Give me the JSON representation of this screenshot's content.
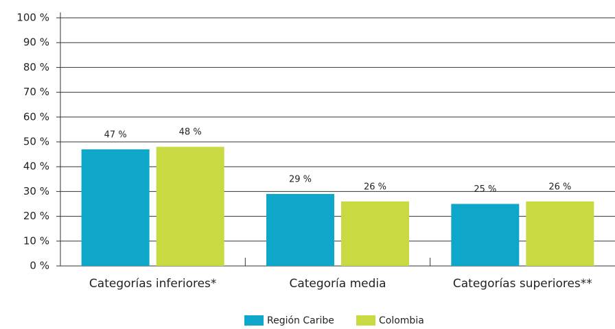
{
  "chart_data": {
    "type": "bar",
    "categories": [
      "Categorías inferiores*",
      "Categoría media",
      "Categorías superiores**"
    ],
    "series": [
      {
        "name": "Región Caribe",
        "color": "#0fa7c9",
        "values": [
          47,
          29,
          25
        ],
        "value_labels": [
          "47 %",
          "29 %",
          "25 %"
        ]
      },
      {
        "name": "Colombia",
        "color": "#c8d942",
        "values": [
          48,
          26,
          26
        ],
        "value_labels": [
          "48 %",
          "26 %",
          "26 %"
        ]
      }
    ],
    "ylim": [
      0,
      100
    ],
    "yticks": [
      {
        "value": 0,
        "label": "0 %"
      },
      {
        "value": 10,
        "label": "10 %"
      },
      {
        "value": 20,
        "label": "20 %"
      },
      {
        "value": 30,
        "label": "30 %"
      },
      {
        "value": 40,
        "label": "40 %"
      },
      {
        "value": 50,
        "label": "50 %"
      },
      {
        "value": 60,
        "label": "60 %"
      },
      {
        "value": 70,
        "label": "70 %"
      },
      {
        "value": 80,
        "label": "80 %"
      },
      {
        "value": 90,
        "label": "90 %"
      },
      {
        "value": 100,
        "label": "100 %"
      }
    ],
    "grid": true,
    "legend": "bottom"
  }
}
